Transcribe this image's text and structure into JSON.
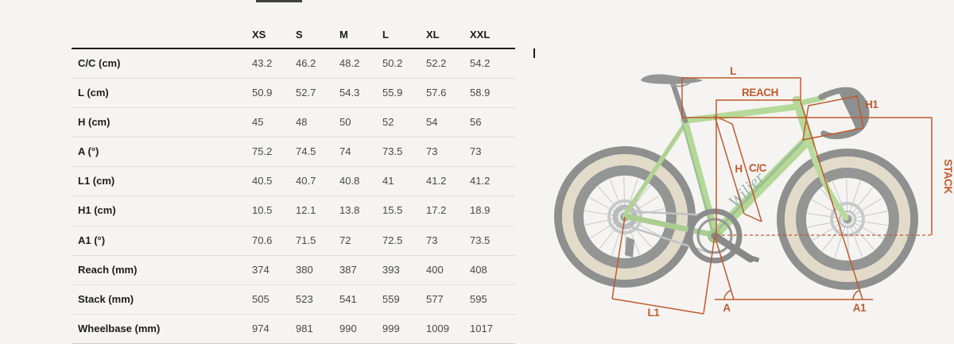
{
  "page": {
    "background": "#f5f4f2",
    "tab_indicator_color": "#3f3f3f"
  },
  "table": {
    "columns": [
      "XS",
      "S",
      "M",
      "L",
      "XL",
      "XXL"
    ],
    "rows": [
      {
        "label": "C/C (cm)",
        "values": [
          "43.2",
          "46.2",
          "48.2",
          "50.2",
          "52.2",
          "54.2"
        ]
      },
      {
        "label": "L (cm)",
        "values": [
          "50.9",
          "52.7",
          "54.3",
          "55.9",
          "57.6",
          "58.9"
        ]
      },
      {
        "label": "H (cm)",
        "values": [
          "45",
          "48",
          "50",
          "52",
          "54",
          "56"
        ]
      },
      {
        "label": "A (°)",
        "values": [
          "75.2",
          "74.5",
          "74",
          "73.5",
          "73",
          "73"
        ]
      },
      {
        "label": "L1 (cm)",
        "values": [
          "40.5",
          "40.7",
          "40.8",
          "41",
          "41.2",
          "41.2"
        ]
      },
      {
        "label": "H1 (cm)",
        "values": [
          "10.5",
          "12.1",
          "13.8",
          "15.5",
          "17.2",
          "18.9"
        ]
      },
      {
        "label": "A1 (°)",
        "values": [
          "70.6",
          "71.5",
          "72",
          "72.5",
          "73",
          "73.5"
        ]
      },
      {
        "label": "Reach (mm)",
        "values": [
          "374",
          "380",
          "387",
          "393",
          "400",
          "408"
        ]
      },
      {
        "label": "Stack (mm)",
        "values": [
          "505",
          "523",
          "541",
          "559",
          "577",
          "595"
        ]
      },
      {
        "label": "Wheelbase (mm)",
        "values": [
          "974",
          "981",
          "990",
          "999",
          "1009",
          "1017"
        ]
      }
    ]
  },
  "diagram": {
    "annotation_color": "#c05a2e",
    "bike_brand": "Wilier",
    "frame_color": "#7fc24f",
    "labels": {
      "l": "L",
      "reach": "REACH",
      "h1": "H1",
      "h": "H",
      "cc": "C/C",
      "stack": "STACK",
      "l1": "L1",
      "a": "A",
      "a1": "A1"
    }
  }
}
